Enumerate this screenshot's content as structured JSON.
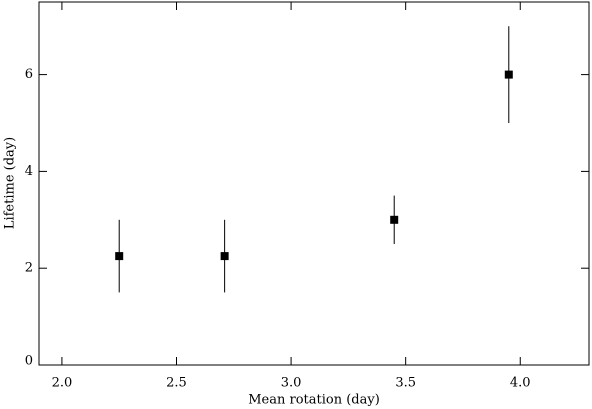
{
  "chart_data": {
    "type": "scatter",
    "xlabel": "Mean rotation (day)",
    "ylabel": "Lifetime (day)",
    "x": [
      2.25,
      2.71,
      3.45,
      3.95
    ],
    "values": [
      2.25,
      2.25,
      3.0,
      6.0
    ],
    "errors": [
      0.75,
      0.75,
      0.5,
      1.0
    ],
    "color": "#000000",
    "xlim": [
      1.9,
      4.3
    ],
    "ylim": [
      0,
      7.5
    ],
    "xticks": [
      {
        "value": 2.0,
        "label": "2.0"
      },
      2.5,
      {
        "value": 3.0,
        "label": "3.0"
      },
      3.5,
      {
        "value": 4.0,
        "label": "4.0"
      }
    ],
    "yticks": [
      0,
      2,
      4,
      6
    ]
  }
}
